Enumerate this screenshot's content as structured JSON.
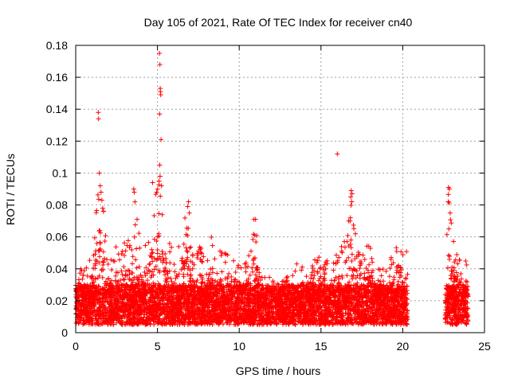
{
  "chart_data": {
    "type": "scatter",
    "title": "Day 105 of 2021, Rate Of TEC Index for receiver cn40",
    "xlabel": "GPS time / hours",
    "ylabel": "ROTI / TECUs",
    "xlim": [
      0,
      25
    ],
    "ylim": [
      0,
      0.18
    ],
    "x_ticks": [
      0,
      5,
      10,
      15,
      20,
      25
    ],
    "x_tick_labels": [
      "0",
      "5",
      "10",
      "15",
      "20",
      "25"
    ],
    "y_ticks": [
      0,
      0.02,
      0.04,
      0.06,
      0.08,
      0.1,
      0.12,
      0.14,
      0.16,
      0.18
    ],
    "y_tick_labels": [
      "0",
      "0.02",
      "0.04",
      "0.06",
      "0.08",
      "0.1",
      "0.12",
      "0.14",
      "0.16",
      "0.18"
    ],
    "grid": true,
    "marker": "+",
    "color": "#ff0000",
    "data_coverage_hours": [
      [
        0,
        20.3
      ],
      [
        22.6,
        24.0
      ]
    ],
    "typical_range": [
      0.005,
      0.03
    ],
    "envelope": [
      {
        "x": 0.0,
        "ymax": 0.035
      },
      {
        "x": 0.3,
        "ymax": 0.065
      },
      {
        "x": 0.6,
        "ymax": 0.04
      },
      {
        "x": 1.0,
        "ymax": 0.05
      },
      {
        "x": 1.4,
        "ymax": 0.1
      },
      {
        "x": 1.7,
        "ymax": 0.08
      },
      {
        "x": 2.0,
        "ymax": 0.045
      },
      {
        "x": 2.5,
        "ymax": 0.055
      },
      {
        "x": 3.0,
        "ymax": 0.06
      },
      {
        "x": 3.5,
        "ymax": 0.055
      },
      {
        "x": 3.6,
        "ymax": 0.088
      },
      {
        "x": 4.0,
        "ymax": 0.05
      },
      {
        "x": 4.5,
        "ymax": 0.065
      },
      {
        "x": 4.8,
        "ymax": 0.09
      },
      {
        "x": 5.2,
        "ymax": 0.1
      },
      {
        "x": 5.6,
        "ymax": 0.06
      },
      {
        "x": 6.0,
        "ymax": 0.05
      },
      {
        "x": 6.5,
        "ymax": 0.06
      },
      {
        "x": 6.8,
        "ymax": 0.08
      },
      {
        "x": 7.2,
        "ymax": 0.045
      },
      {
        "x": 7.6,
        "ymax": 0.055
      },
      {
        "x": 8.0,
        "ymax": 0.045
      },
      {
        "x": 8.4,
        "ymax": 0.065
      },
      {
        "x": 9.0,
        "ymax": 0.05
      },
      {
        "x": 9.5,
        "ymax": 0.05
      },
      {
        "x": 10.0,
        "ymax": 0.045
      },
      {
        "x": 10.5,
        "ymax": 0.045
      },
      {
        "x": 11.0,
        "ymax": 0.07
      },
      {
        "x": 11.5,
        "ymax": 0.035
      },
      {
        "x": 12.0,
        "ymax": 0.04
      },
      {
        "x": 12.5,
        "ymax": 0.035
      },
      {
        "x": 13.0,
        "ymax": 0.035
      },
      {
        "x": 13.5,
        "ymax": 0.045
      },
      {
        "x": 14.0,
        "ymax": 0.045
      },
      {
        "x": 14.5,
        "ymax": 0.05
      },
      {
        "x": 15.0,
        "ymax": 0.05
      },
      {
        "x": 15.5,
        "ymax": 0.045
      },
      {
        "x": 16.0,
        "ymax": 0.05
      },
      {
        "x": 16.5,
        "ymax": 0.06
      },
      {
        "x": 16.8,
        "ymax": 0.088
      },
      {
        "x": 17.3,
        "ymax": 0.05
      },
      {
        "x": 17.8,
        "ymax": 0.06
      },
      {
        "x": 18.3,
        "ymax": 0.045
      },
      {
        "x": 18.8,
        "ymax": 0.04
      },
      {
        "x": 19.3,
        "ymax": 0.05
      },
      {
        "x": 19.8,
        "ymax": 0.06
      },
      {
        "x": 20.3,
        "ymax": 0.05
      },
      {
        "x": 22.6,
        "ymax": 0.04
      },
      {
        "x": 22.8,
        "ymax": 0.09
      },
      {
        "x": 23.1,
        "ymax": 0.06
      },
      {
        "x": 23.5,
        "ymax": 0.05
      },
      {
        "x": 24.0,
        "ymax": 0.045
      }
    ],
    "outliers": [
      {
        "x": 1.38,
        "y": 0.138
      },
      {
        "x": 1.4,
        "y": 0.134
      },
      {
        "x": 1.45,
        "y": 0.1
      },
      {
        "x": 1.5,
        "y": 0.092
      },
      {
        "x": 1.55,
        "y": 0.088
      },
      {
        "x": 1.6,
        "y": 0.083
      },
      {
        "x": 1.65,
        "y": 0.078
      },
      {
        "x": 1.7,
        "y": 0.076
      },
      {
        "x": 3.55,
        "y": 0.09
      },
      {
        "x": 3.58,
        "y": 0.088
      },
      {
        "x": 4.7,
        "y": 0.094
      },
      {
        "x": 5.12,
        "y": 0.175
      },
      {
        "x": 5.15,
        "y": 0.168
      },
      {
        "x": 5.17,
        "y": 0.153
      },
      {
        "x": 5.18,
        "y": 0.151
      },
      {
        "x": 5.2,
        "y": 0.149
      },
      {
        "x": 5.13,
        "y": 0.137
      },
      {
        "x": 5.22,
        "y": 0.121
      },
      {
        "x": 5.14,
        "y": 0.105
      },
      {
        "x": 5.16,
        "y": 0.098
      },
      {
        "x": 5.1,
        "y": 0.095
      },
      {
        "x": 5.25,
        "y": 0.092
      },
      {
        "x": 4.95,
        "y": 0.088
      },
      {
        "x": 6.9,
        "y": 0.082
      },
      {
        "x": 6.85,
        "y": 0.079
      },
      {
        "x": 6.95,
        "y": 0.075
      },
      {
        "x": 10.9,
        "y": 0.071
      },
      {
        "x": 11.0,
        "y": 0.071
      },
      {
        "x": 10.95,
        "y": 0.061
      },
      {
        "x": 16.0,
        "y": 0.112
      },
      {
        "x": 16.85,
        "y": 0.089
      },
      {
        "x": 16.9,
        "y": 0.087
      },
      {
        "x": 16.82,
        "y": 0.085
      },
      {
        "x": 16.88,
        "y": 0.082
      },
      {
        "x": 16.8,
        "y": 0.072
      },
      {
        "x": 16.78,
        "y": 0.07
      },
      {
        "x": 22.8,
        "y": 0.091
      },
      {
        "x": 22.85,
        "y": 0.09
      },
      {
        "x": 22.78,
        "y": 0.082
      },
      {
        "x": 22.9,
        "y": 0.075
      },
      {
        "x": 22.82,
        "y": 0.065
      }
    ]
  }
}
